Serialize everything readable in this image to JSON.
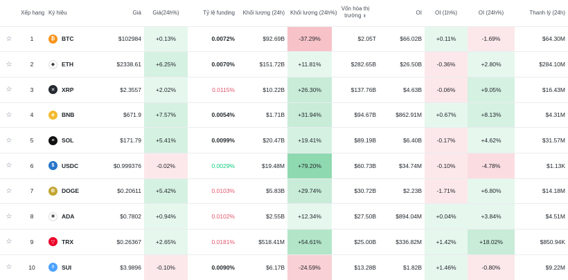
{
  "headers": {
    "rank": "Xếp hạng",
    "symbol": "Ký hiệu",
    "price": "Giá",
    "change": "Giá(24h%)",
    "funding": "Tỷ lệ funding",
    "volume": "Khối lượng (24h)",
    "volume_change": "Khối lượng (24h%)",
    "mcap": "Vốn hóa thị trường",
    "oi": "OI",
    "oi_1h": "OI (1h%)",
    "oi_24h": "OI (24h%)",
    "liq": "Thanh lý (24h)"
  },
  "rows": [
    {
      "rank": "1",
      "symbol": "BTC",
      "icon": "bitcoin-icon",
      "icon_color": "#f7931a",
      "glyph": "₿",
      "price": "$102984",
      "change": "+0.13%",
      "change_bg": "#e6f7ee",
      "funding": "0.0072%",
      "funding_style": "bold",
      "volume": "$92.69B",
      "vol_change": "-37.29%",
      "vol_bg": "#f7c2c8",
      "mcap": "$2.05T",
      "oi": "$66.02B",
      "oi1h": "+0.11%",
      "oi1h_bg": "#e6f7ee",
      "oi24h": "-1.69%",
      "oi24h_bg": "#fce8ea",
      "liq": "$64.30M"
    },
    {
      "rank": "2",
      "symbol": "ETH",
      "icon": "ethereum-icon",
      "icon_color": "#ffffff",
      "glyph": "◆",
      "price": "$2338.61",
      "change": "+6.25%",
      "change_bg": "#d5f1e2",
      "funding": "0.0070%",
      "funding_style": "bold",
      "volume": "$151.72B",
      "vol_change": "+11.81%",
      "vol_bg": "#e6f7ee",
      "mcap": "$282.65B",
      "oi": "$26.50B",
      "oi1h": "-0.36%",
      "oi1h_bg": "#fce8ea",
      "oi24h": "+2.80%",
      "oi24h_bg": "#e6f7ee",
      "liq": "$284.10M"
    },
    {
      "rank": "3",
      "symbol": "XRP",
      "icon": "xrp-icon",
      "icon_color": "#23292f",
      "glyph": "✕",
      "price": "$2.3557",
      "change": "+2.02%",
      "change_bg": "#e6f7ee",
      "funding": "0.0115%",
      "funding_style": "neg",
      "volume": "$10.22B",
      "vol_change": "+26.30%",
      "vol_bg": "#c8ecd8",
      "mcap": "$137.76B",
      "oi": "$4.63B",
      "oi1h": "-0.06%",
      "oi1h_bg": "#fce8ea",
      "oi24h": "+9.05%",
      "oi24h_bg": "#d5f1e2",
      "liq": "$16.43M"
    },
    {
      "rank": "4",
      "symbol": "BNB",
      "icon": "bnb-icon",
      "icon_color": "#f3ba2f",
      "glyph": "◈",
      "price": "$671.9",
      "change": "+7.57%",
      "change_bg": "#d5f1e2",
      "funding": "0.0054%",
      "funding_style": "bold",
      "volume": "$1.71B",
      "vol_change": "+31.94%",
      "vol_bg": "#c8ecd8",
      "mcap": "$94.67B",
      "oi": "$862.91M",
      "oi1h": "+0.67%",
      "oi1h_bg": "#e6f7ee",
      "oi24h": "+8.13%",
      "oi24h_bg": "#d5f1e2",
      "liq": "$4.31M"
    },
    {
      "rank": "5",
      "symbol": "SOL",
      "icon": "solana-icon",
      "icon_color": "#111111",
      "glyph": "≡",
      "price": "$171.79",
      "change": "+5.41%",
      "change_bg": "#d5f1e2",
      "funding": "0.0099%",
      "funding_style": "bold",
      "volume": "$20.47B",
      "vol_change": "+19.41%",
      "vol_bg": "#d5f1e2",
      "mcap": "$89.19B",
      "oi": "$6.40B",
      "oi1h": "-0.17%",
      "oi1h_bg": "#fce8ea",
      "oi24h": "+4.62%",
      "oi24h_bg": "#e6f7ee",
      "liq": "$31.57M"
    },
    {
      "rank": "6",
      "symbol": "USDC",
      "icon": "usdc-icon",
      "icon_color": "#2775ca",
      "glyph": "$",
      "price": "$0.999376",
      "change": "-0.02%",
      "change_bg": "#fce8ea",
      "funding": "0.0029%",
      "funding_style": "pos",
      "volume": "$19.48M",
      "vol_change": "+79.20%",
      "vol_bg": "#8fd9b0",
      "mcap": "$60.73B",
      "oi": "$34.74M",
      "oi1h": "-0.10%",
      "oi1h_bg": "#fce8ea",
      "oi24h": "-4.78%",
      "oi24h_bg": "#fbdde1",
      "liq": "$1.13K"
    },
    {
      "rank": "7",
      "symbol": "DOGE",
      "icon": "dogecoin-icon",
      "icon_color": "#c2a633",
      "glyph": "Ð",
      "price": "$0.20611",
      "change": "+5.42%",
      "change_bg": "#d5f1e2",
      "funding": "0.0103%",
      "funding_style": "neg",
      "volume": "$5.83B",
      "vol_change": "+29.74%",
      "vol_bg": "#c8ecd8",
      "mcap": "$30.72B",
      "oi": "$2.23B",
      "oi1h": "-1.71%",
      "oi1h_bg": "#fce8ea",
      "oi24h": "+6.80%",
      "oi24h_bg": "#e6f7ee",
      "liq": "$14.18M"
    },
    {
      "rank": "8",
      "symbol": "ADA",
      "icon": "cardano-icon",
      "icon_color": "#ffffff",
      "glyph": "✺",
      "price": "$0.7802",
      "change": "+0.94%",
      "change_bg": "#e6f7ee",
      "funding": "0.0102%",
      "funding_style": "neg",
      "volume": "$2.55B",
      "vol_change": "+12.34%",
      "vol_bg": "#e6f7ee",
      "mcap": "$27.50B",
      "oi": "$894.04M",
      "oi1h": "+0.04%",
      "oi1h_bg": "#e6f7ee",
      "oi24h": "+3.84%",
      "oi24h_bg": "#e6f7ee",
      "liq": "$4.51M"
    },
    {
      "rank": "9",
      "symbol": "TRX",
      "icon": "tron-icon",
      "icon_color": "#eb0029",
      "glyph": "▽",
      "price": "$0.26367",
      "change": "+2.65%",
      "change_bg": "#e6f7ee",
      "funding": "0.0181%",
      "funding_style": "neg",
      "volume": "$518.41M",
      "vol_change": "+54.61%",
      "vol_bg": "#b3e6c9",
      "mcap": "$25.00B",
      "oi": "$336.82M",
      "oi1h": "+1.42%",
      "oi1h_bg": "#e6f7ee",
      "oi24h": "+18.02%",
      "oi24h_bg": "#c8ecd8",
      "liq": "$850.94K"
    },
    {
      "rank": "10",
      "symbol": "SUI",
      "icon": "sui-icon",
      "icon_color": "#4da2ff",
      "glyph": "◊",
      "price": "$3.9896",
      "change": "-0.10%",
      "change_bg": "#fce8ea",
      "funding": "0.0090%",
      "funding_style": "bold",
      "volume": "$6.17B",
      "vol_change": "-24.59%",
      "vol_bg": "#f9d0d5",
      "mcap": "$13.28B",
      "oi": "$1.82B",
      "oi1h": "+1.46%",
      "oi1h_bg": "#e6f7ee",
      "oi24h": "-0.80%",
      "oi24h_bg": "#fce8ea",
      "liq": "$9.22M"
    }
  ]
}
